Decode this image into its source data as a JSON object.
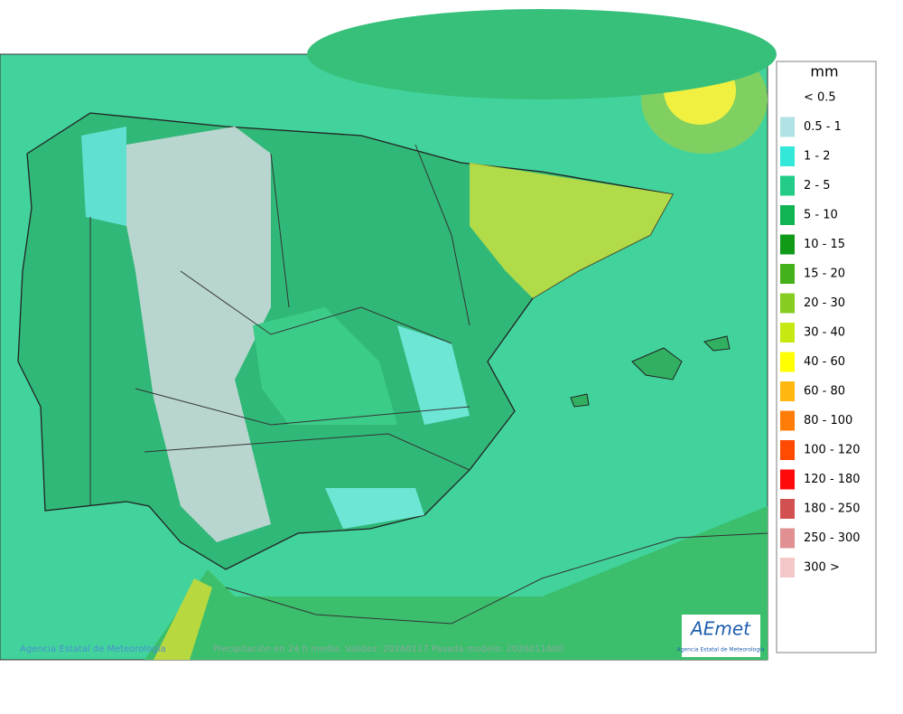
{
  "legend": {
    "unit": "mm",
    "items": [
      {
        "label": "< 0.5",
        "color": "#ffffff"
      },
      {
        "label": "0.5 - 1",
        "color": "#b0e2e6"
      },
      {
        "label": "1 - 2",
        "color": "#33e8d8"
      },
      {
        "label": "2 - 5",
        "color": "#22cc88"
      },
      {
        "label": "5 - 10",
        "color": "#11b454"
      },
      {
        "label": "10 - 15",
        "color": "#109a18"
      },
      {
        "label": "15 - 20",
        "color": "#44b01a"
      },
      {
        "label": "20 - 30",
        "color": "#88cc22"
      },
      {
        "label": "30 - 40",
        "color": "#c8e812"
      },
      {
        "label": "40 - 60",
        "color": "#ffff00"
      },
      {
        "label": "60 - 80",
        "color": "#ffb810"
      },
      {
        "label": "80 - 100",
        "color": "#ff7c08"
      },
      {
        "label": "100 - 120",
        "color": "#ff4a00"
      },
      {
        "label": "120 - 180",
        "color": "#ff0a0a"
      },
      {
        "label": "180 - 250",
        "color": "#d25050"
      },
      {
        "label": "250 - 300",
        "color": "#e09090"
      },
      {
        "label": "300 >",
        "color": "#f4c8c8"
      }
    ]
  },
  "footer": {
    "credit": "Agencia Estatal de Meteorología",
    "caption": "Precipitación en 24 h media. Validez: 20260117 Pasada modelo: 2026011600"
  },
  "logo": {
    "name": "AEmet",
    "subtitle": "Agencia Estatal de Meteorología"
  }
}
